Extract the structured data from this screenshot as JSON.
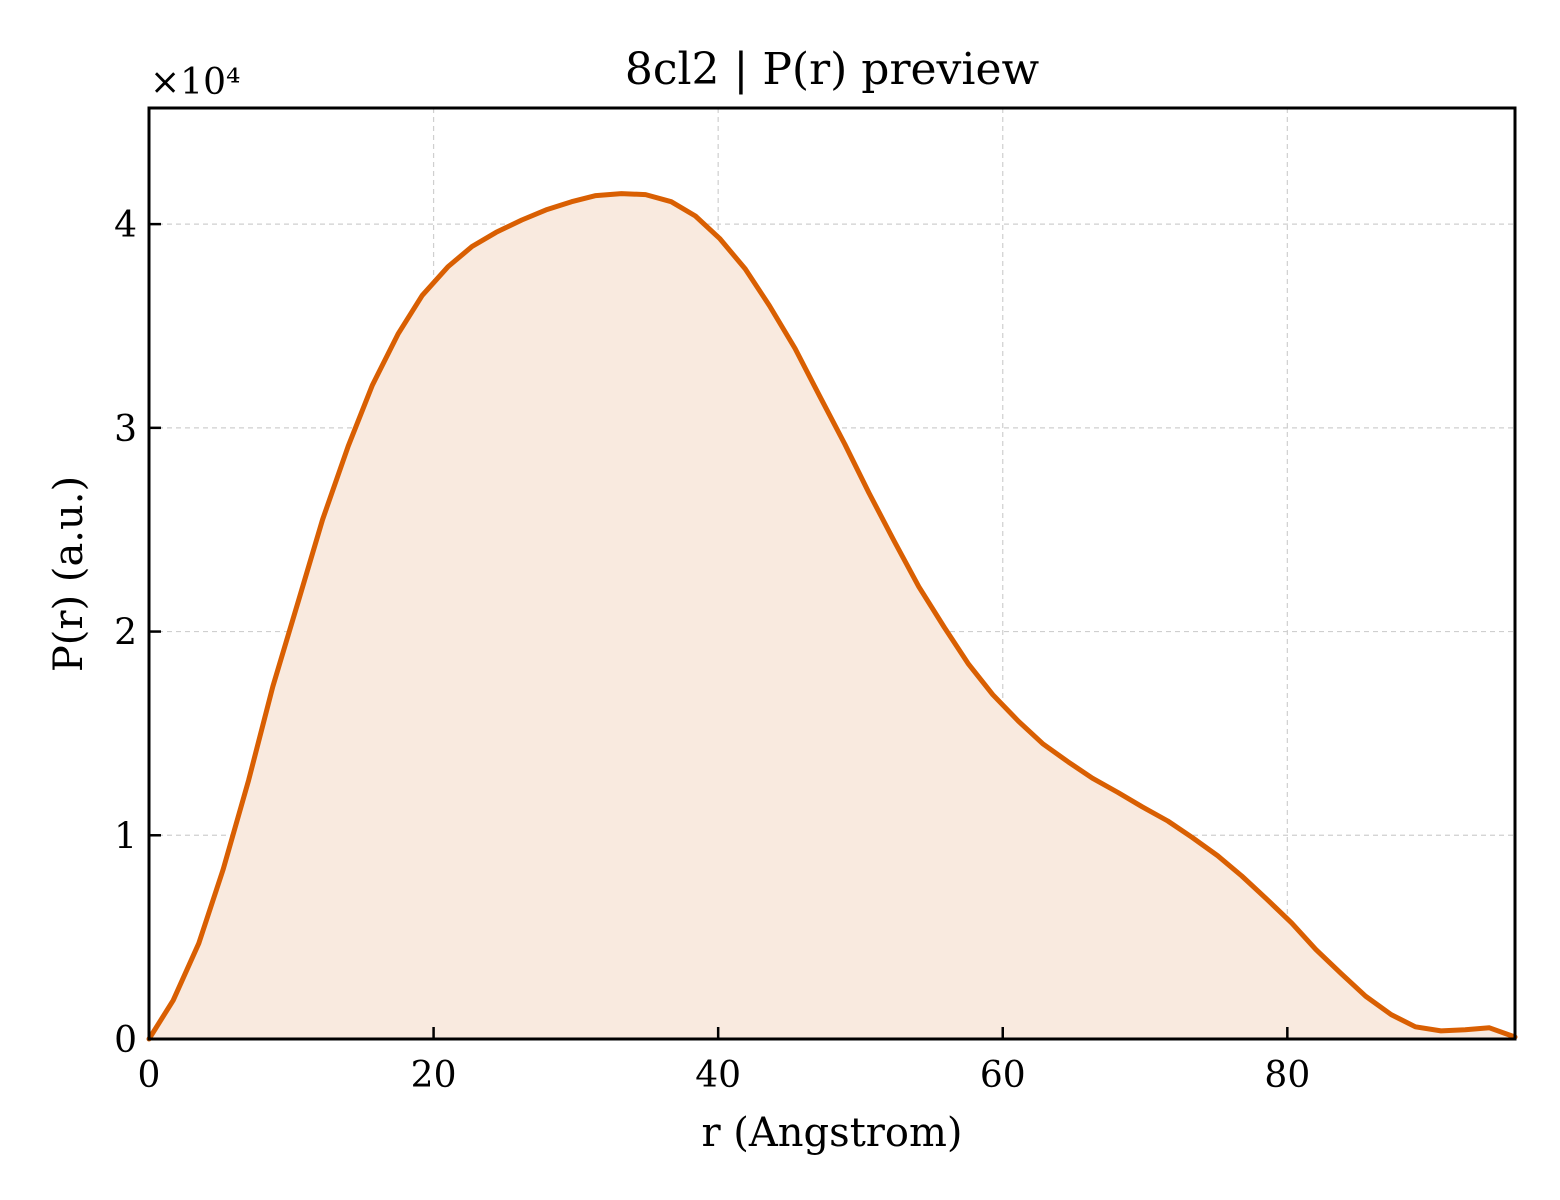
{
  "chart_data": {
    "type": "area",
    "title": "8cl2 | P(r) preview",
    "xlabel": "r (Angstrom)",
    "ylabel": "P(r) (a.u.)",
    "y_multiplier_label": "×10⁴",
    "xlim": [
      0,
      96
    ],
    "ylim": [
      0,
      4.57
    ],
    "x_ticks": [
      0,
      20,
      40,
      60,
      80
    ],
    "y_ticks": [
      0,
      1,
      2,
      3,
      4
    ],
    "grid": true,
    "line_color": "#d95f02",
    "fill_color": "#f9eadf",
    "series": [
      {
        "x": [
          0,
          1.7,
          3.5,
          5.2,
          7.0,
          8.7,
          10.5,
          12.2,
          14.0,
          15.7,
          17.5,
          19.2,
          21.0,
          22.7,
          24.4,
          26.2,
          27.9,
          29.7,
          31.4,
          33.2,
          34.9,
          36.7,
          38.4,
          40.1,
          41.9,
          43.6,
          45.4,
          47.1,
          48.9,
          50.6,
          52.4,
          54.1,
          55.9,
          57.6,
          59.3,
          61.1,
          62.8,
          64.6,
          66.3,
          68.1,
          69.8,
          71.6,
          73.3,
          75.1,
          76.8,
          78.5,
          80.3,
          82.0,
          83.8,
          85.5,
          87.3,
          89.0,
          90.8,
          92.5,
          94.2,
          96.0
        ],
        "y": [
          0.0,
          0.19,
          0.47,
          0.83,
          1.27,
          1.73,
          2.15,
          2.55,
          2.91,
          3.21,
          3.46,
          3.65,
          3.79,
          3.89,
          3.96,
          4.02,
          4.07,
          4.11,
          4.14,
          4.15,
          4.145,
          4.11,
          4.04,
          3.93,
          3.78,
          3.6,
          3.39,
          3.16,
          2.92,
          2.68,
          2.44,
          2.22,
          2.02,
          1.84,
          1.69,
          1.56,
          1.45,
          1.36,
          1.28,
          1.21,
          1.14,
          1.07,
          0.99,
          0.9,
          0.8,
          0.69,
          0.57,
          0.44,
          0.32,
          0.21,
          0.12,
          0.06,
          0.04,
          0.045,
          0.055,
          0.01
        ]
      }
    ]
  }
}
